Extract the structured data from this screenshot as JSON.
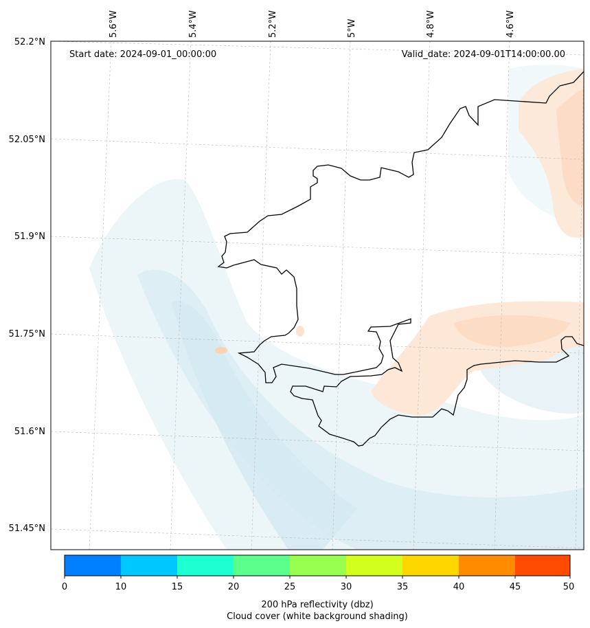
{
  "annotations": {
    "start_date": "Start date: 2024-09-01_00:00:00",
    "valid_date": "Valid_date: 2024-09-01T14:00:00.00"
  },
  "longitude_labels": [
    "5.6°W",
    "5.4°W",
    "5.2°W",
    "5°W",
    "4.8°W",
    "4.6°W"
  ],
  "latitude_labels": [
    "52.2°N",
    "52.05°N",
    "51.9°N",
    "51.75°N",
    "51.6°N",
    "51.45°N"
  ],
  "colorbar": {
    "ticks": [
      "0",
      "10",
      "15",
      "20",
      "25",
      "30",
      "35",
      "40",
      "45",
      "50"
    ],
    "colors": [
      "#0080ff",
      "#00c8ff",
      "#1effd2",
      "#5aff8c",
      "#96ff50",
      "#d2ff1e",
      "#ffd700",
      "#ff8c00",
      "#ff4b00"
    ],
    "label_line1": "200 hPa reflectivity (dbz)",
    "label_line2": "Cloud cover (white background shading)"
  },
  "shading": {
    "cloud_tint": "#e3f1f7",
    "reflectivity_tint": "#fde3cf"
  },
  "coastline_color": "#000000"
}
